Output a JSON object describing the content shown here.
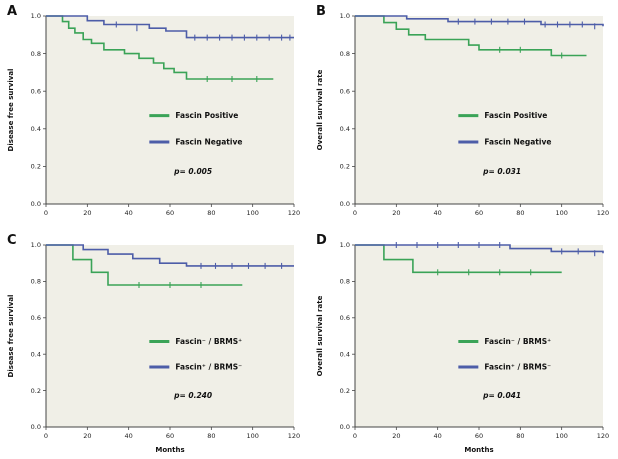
{
  "figure": {
    "type": "kaplan-meier-survival-figure",
    "background": "#ffffff",
    "plot_bg": "#f0efe7",
    "axis_color": "#444444",
    "green": "#3aa357",
    "blue": "#4d5da8"
  },
  "panels": [
    {
      "label": "A"
    },
    {
      "label": "B"
    },
    {
      "label": "C"
    },
    {
      "label": "D"
    }
  ],
  "chart_data": [
    {
      "panel": "A",
      "type": "line",
      "step": true,
      "title": "",
      "xlabel": "",
      "ylabel": "Disease free survival",
      "xlim": [
        0,
        120
      ],
      "ylim": [
        0.0,
        1.0
      ],
      "xticks": [
        0,
        20,
        40,
        60,
        80,
        100,
        120
      ],
      "yticks": [
        0.0,
        0.2,
        0.4,
        0.6,
        0.8,
        1.0
      ],
      "grid": false,
      "legend_position": "center-right",
      "p_value": "p= 0.005",
      "series": [
        {
          "name": "Fascin Positive",
          "color": "#3aa357",
          "x": [
            0,
            8,
            11,
            14,
            18,
            22,
            28,
            38,
            45,
            52,
            57,
            62,
            68,
            110
          ],
          "y": [
            1.0,
            0.97,
            0.935,
            0.91,
            0.875,
            0.855,
            0.82,
            0.8,
            0.775,
            0.75,
            0.72,
            0.7,
            0.665,
            0.665
          ],
          "censor_x": [
            78,
            90,
            102
          ],
          "censor_y": [
            0.665,
            0.665,
            0.665
          ]
        },
        {
          "name": "Fascin Negative",
          "color": "#4d5da8",
          "x": [
            0,
            20,
            28,
            50,
            58,
            68,
            120
          ],
          "y": [
            1.0,
            0.975,
            0.955,
            0.935,
            0.92,
            0.885,
            0.885
          ],
          "censor_x": [
            34,
            44,
            72,
            78,
            84,
            90,
            96,
            102,
            108,
            114,
            118
          ],
          "censor_y": [
            0.955,
            0.935,
            0.885,
            0.885,
            0.885,
            0.885,
            0.885,
            0.885,
            0.885,
            0.885,
            0.885
          ]
        }
      ]
    },
    {
      "panel": "B",
      "type": "line",
      "step": true,
      "title": "",
      "xlabel": "",
      "ylabel": "Overall survival rate",
      "xlim": [
        0,
        120
      ],
      "ylim": [
        0.0,
        1.0
      ],
      "xticks": [
        0,
        20,
        40,
        60,
        80,
        100,
        120
      ],
      "yticks": [
        0.0,
        0.2,
        0.4,
        0.6,
        0.8,
        1.0
      ],
      "grid": false,
      "legend_position": "center-right",
      "p_value": "p= 0.031",
      "series": [
        {
          "name": "Fascin Positive",
          "color": "#3aa357",
          "x": [
            0,
            14,
            20,
            26,
            34,
            55,
            60,
            95,
            112
          ],
          "y": [
            1.0,
            0.965,
            0.93,
            0.9,
            0.875,
            0.845,
            0.82,
            0.79,
            0.79
          ],
          "censor_x": [
            70,
            80,
            100
          ],
          "censor_y": [
            0.82,
            0.82,
            0.79
          ]
        },
        {
          "name": "Fascin Negative",
          "color": "#4d5da8",
          "x": [
            0,
            25,
            45,
            90,
            120
          ],
          "y": [
            1.0,
            0.985,
            0.97,
            0.955,
            0.945
          ],
          "censor_x": [
            50,
            58,
            66,
            74,
            82,
            92,
            98,
            104,
            110,
            116
          ],
          "censor_y": [
            0.97,
            0.97,
            0.97,
            0.97,
            0.97,
            0.955,
            0.955,
            0.955,
            0.955,
            0.945
          ]
        }
      ]
    },
    {
      "panel": "C",
      "type": "line",
      "step": true,
      "title": "",
      "xlabel": "Months",
      "ylabel": "Disease free survival",
      "xlim": [
        0,
        120
      ],
      "ylim": [
        0.0,
        1.0
      ],
      "xticks": [
        0,
        20,
        40,
        60,
        80,
        100,
        120
      ],
      "yticks": [
        0.0,
        0.2,
        0.4,
        0.6,
        0.8,
        1.0
      ],
      "grid": false,
      "legend_position": "center-right",
      "p_value": "p= 0.240",
      "series": [
        {
          "name": "Fascin⁻ / BRMS⁺",
          "color": "#3aa357",
          "x": [
            0,
            13,
            22,
            30,
            95
          ],
          "y": [
            1.0,
            0.92,
            0.85,
            0.78,
            0.78
          ],
          "censor_x": [
            45,
            60,
            75
          ],
          "censor_y": [
            0.78,
            0.78,
            0.78
          ]
        },
        {
          "name": "Fascin⁺ / BRMS⁻",
          "color": "#4d5da8",
          "x": [
            0,
            18,
            30,
            42,
            55,
            68,
            120
          ],
          "y": [
            1.0,
            0.975,
            0.95,
            0.925,
            0.9,
            0.885,
            0.885
          ],
          "censor_x": [
            75,
            82,
            90,
            98,
            106,
            114
          ],
          "censor_y": [
            0.885,
            0.885,
            0.885,
            0.885,
            0.885,
            0.885
          ]
        }
      ]
    },
    {
      "panel": "D",
      "type": "line",
      "step": true,
      "title": "",
      "xlabel": "Months",
      "ylabel": "Overall survival rate",
      "xlim": [
        0,
        120
      ],
      "ylim": [
        0.0,
        1.0
      ],
      "xticks": [
        0,
        20,
        40,
        60,
        80,
        100,
        120
      ],
      "yticks": [
        0.0,
        0.2,
        0.4,
        0.6,
        0.8,
        1.0
      ],
      "grid": false,
      "legend_position": "center-right",
      "p_value": "p= 0.041",
      "series": [
        {
          "name": "Fascin⁻ / BRMS⁺",
          "color": "#3aa357",
          "x": [
            0,
            14,
            28,
            100
          ],
          "y": [
            1.0,
            0.92,
            0.85,
            0.85
          ],
          "censor_x": [
            40,
            55,
            70,
            85
          ],
          "censor_y": [
            0.85,
            0.85,
            0.85,
            0.85
          ]
        },
        {
          "name": "Fascin⁺ / BRMS⁻",
          "color": "#4d5da8",
          "x": [
            0,
            75,
            95,
            120
          ],
          "y": [
            1.0,
            0.98,
            0.965,
            0.955
          ],
          "censor_x": [
            20,
            30,
            40,
            50,
            60,
            70,
            100,
            108,
            116
          ],
          "censor_y": [
            1.0,
            1.0,
            1.0,
            1.0,
            1.0,
            1.0,
            0.965,
            0.965,
            0.955
          ]
        }
      ]
    }
  ]
}
